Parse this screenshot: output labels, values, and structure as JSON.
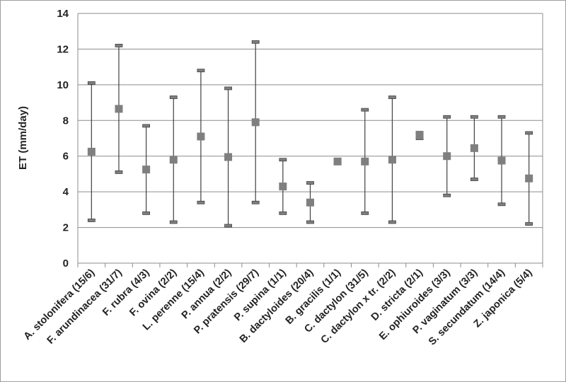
{
  "chart_data": {
    "type": "range-mean",
    "title": "",
    "xlabel": "",
    "ylabel": "ET (mm/day)",
    "ylim": [
      0,
      14
    ],
    "yticks": [
      0,
      2,
      4,
      6,
      8,
      10,
      12,
      14
    ],
    "grid": true,
    "categories": [
      "A. stolonifera (15/6)",
      "F. arundinacea (31/7)",
      "F. rubra (4/3)",
      "F. ovina (2/2)",
      "L. perenne (15/4)",
      "P. annua (2/2)",
      "P. pratensis (29/7)",
      "P. supina (1/1)",
      "B. dactyloides (20/4)",
      "B. gracilis (1/1)",
      "C. dactylon (31/5)",
      "C. dactylon x tr. (2/2)",
      "D. stricta (2/1)",
      "E. ophiuroides (3/3)",
      "P. vaginatum (3/3)",
      "S. secundatum (14/4)",
      "Z. japonica (5/4)"
    ],
    "series": [
      {
        "name": "max",
        "values": [
          10.1,
          12.2,
          7.7,
          9.3,
          10.8,
          9.8,
          12.4,
          5.8,
          4.5,
          5.8,
          8.6,
          9.3,
          7.3,
          8.2,
          8.2,
          8.2,
          7.3
        ]
      },
      {
        "name": "mean",
        "values": [
          6.25,
          8.65,
          5.25,
          5.8,
          7.1,
          5.95,
          7.9,
          4.3,
          3.4,
          5.7,
          5.7,
          5.8,
          7.2,
          6.0,
          6.45,
          5.75,
          4.75
        ]
      },
      {
        "name": "min",
        "values": [
          2.4,
          5.1,
          2.8,
          2.3,
          3.4,
          2.1,
          3.4,
          2.8,
          2.3,
          5.6,
          2.8,
          2.3,
          7.0,
          3.8,
          4.7,
          3.3,
          2.2
        ]
      }
    ],
    "colors": {
      "marker": "#7f7f7f",
      "line": "#404040",
      "grid": "#8c8c8c"
    }
  }
}
